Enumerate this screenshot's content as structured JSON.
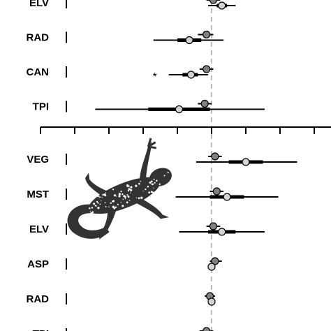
{
  "chart_data": [
    {
      "type": "forest",
      "title": "",
      "xlabel": "",
      "ylabel": "",
      "reference_line": 0,
      "xlim": [
        -10,
        8
      ],
      "x_ticks": [
        -10,
        -8,
        -6,
        -4,
        -2,
        0,
        2,
        4,
        6,
        8
      ],
      "grid": false,
      "rows": [
        {
          "label": "ELV",
          "star": "",
          "dark": {
            "est": 0.1,
            "lo": -0.3,
            "hi": 0.5,
            "lo50": -0.1,
            "hi50": 0.3
          },
          "light": {
            "est": 0.6,
            "lo": -0.2,
            "hi": 1.4,
            "lo50": 0.3,
            "hi50": 0.9
          }
        },
        {
          "label": "RAD",
          "star": "",
          "dark": {
            "est": -0.3,
            "lo": -0.8,
            "hi": 0.1,
            "lo50": -0.5,
            "hi50": -0.1
          },
          "light": {
            "est": -1.3,
            "lo": -3.4,
            "hi": 0.7,
            "lo50": -2.0,
            "hi50": -0.6
          }
        },
        {
          "label": "CAN",
          "star": "*",
          "dark": {
            "est": -0.3,
            "lo": -0.7,
            "hi": 0.1,
            "lo50": -0.5,
            "hi50": -0.1
          },
          "light": {
            "est": -1.2,
            "lo": -2.5,
            "hi": -0.2,
            "lo50": -1.7,
            "hi50": -0.8
          }
        },
        {
          "label": "TPI",
          "star": "",
          "dark": {
            "est": -0.4,
            "lo": -0.8,
            "hi": 0.0,
            "lo50": -0.6,
            "hi50": -0.2
          },
          "light": {
            "est": -1.9,
            "lo": -6.8,
            "hi": 3.1,
            "lo50": -3.7,
            "hi50": -0.1
          }
        }
      ]
    },
    {
      "type": "forest",
      "title": "",
      "xlabel": "",
      "ylabel": "",
      "reference_line": 0,
      "rows": [
        {
          "label": "VEG",
          "star": "",
          "dark": {
            "est": 0.2,
            "lo": -0.2,
            "hi": 0.6,
            "lo50": 0.0,
            "hi50": 0.4
          },
          "light": {
            "est": 2.0,
            "lo": -0.9,
            "hi": 5.0,
            "lo50": 1.0,
            "hi50": 3.0
          }
        },
        {
          "label": "MST",
          "star": "",
          "dark": {
            "est": 0.3,
            "lo": -0.1,
            "hi": 0.7,
            "lo50": 0.1,
            "hi50": 0.5
          },
          "light": {
            "est": 0.9,
            "lo": -2.1,
            "hi": 3.9,
            "lo50": -0.1,
            "hi50": 1.9
          }
        },
        {
          "label": "ELV",
          "star": "",
          "dark": {
            "est": 0.1,
            "lo": -0.3,
            "hi": 0.5,
            "lo50": -0.1,
            "hi50": 0.3
          },
          "light": {
            "est": 0.6,
            "lo": -1.9,
            "hi": 3.1,
            "lo50": -0.2,
            "hi50": 1.4
          }
        },
        {
          "label": "ASP",
          "star": "",
          "dark": {
            "est": 0.2,
            "lo": -0.1,
            "hi": 0.6,
            "lo50": 0.0,
            "hi50": 0.4
          },
          "light": {
            "est": 0.0,
            "lo": -0.2,
            "hi": 0.2,
            "lo50": -0.1,
            "hi50": 0.1
          }
        },
        {
          "label": "RAD",
          "star": "",
          "dark": {
            "est": -0.1,
            "lo": -0.4,
            "hi": 0.2,
            "lo50": -0.2,
            "hi50": 0.0
          },
          "light": {
            "est": 0.0,
            "lo": -0.2,
            "hi": 0.2,
            "lo50": -0.1,
            "hi50": 0.1
          }
        },
        {
          "label": "TPI",
          "star": "*",
          "dark": {
            "est": -0.3,
            "lo": -0.7,
            "hi": 0.1,
            "lo50": -0.5,
            "hi50": -0.1
          },
          "light": {
            "est": -0.3,
            "lo": -0.6,
            "hi": 0.0,
            "lo50": -0.4,
            "hi50": -0.2
          }
        }
      ]
    }
  ],
  "colors": {
    "dark_point": "#808080",
    "light_point": "#d3d3d3",
    "reference_line": "#bbbbbb",
    "line": "#000000",
    "silhouette": "#333333"
  },
  "icons": {
    "silhouette": "salamander-silhouette-icon"
  }
}
